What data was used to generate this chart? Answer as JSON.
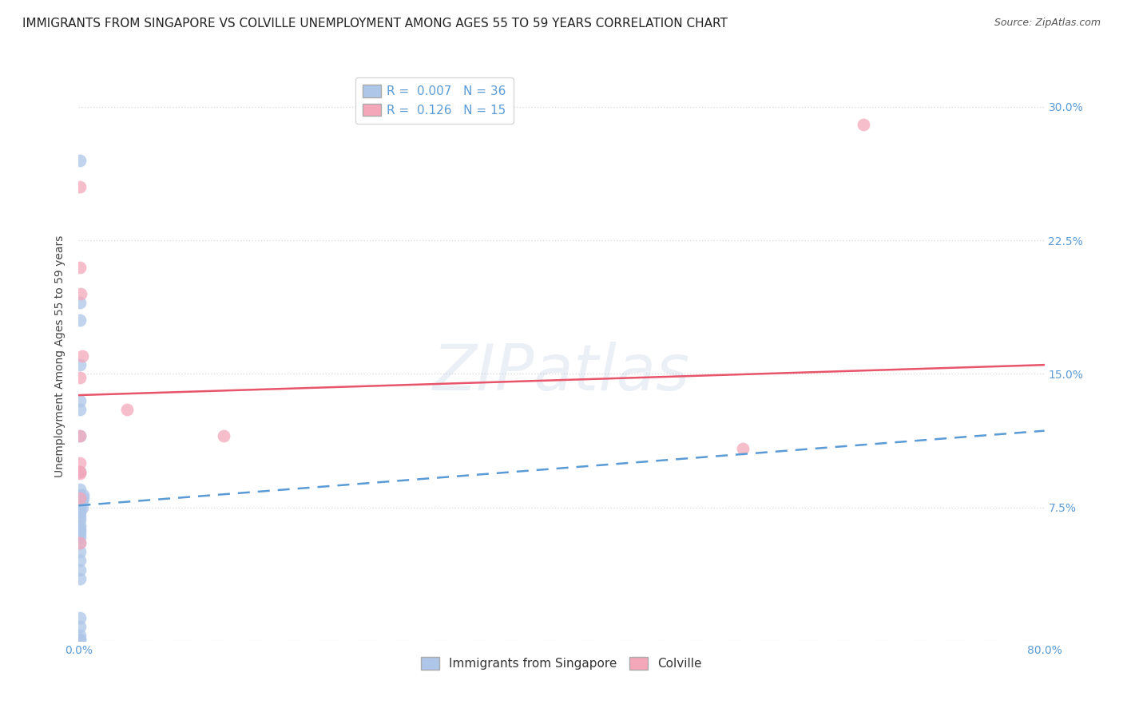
{
  "title": "IMMIGRANTS FROM SINGAPORE VS COLVILLE UNEMPLOYMENT AMONG AGES 55 TO 59 YEARS CORRELATION CHART",
  "source": "Source: ZipAtlas.com",
  "ylabel": "Unemployment Among Ages 55 to 59 years",
  "xlim": [
    0.0,
    0.8
  ],
  "ylim": [
    0.0,
    0.32
  ],
  "xticks": [
    0.0,
    0.1,
    0.2,
    0.3,
    0.4,
    0.5,
    0.6,
    0.7,
    0.8
  ],
  "xticklabels": [
    "0.0%",
    "",
    "",
    "",
    "",
    "",
    "",
    "",
    "80.0%"
  ],
  "yticks": [
    0.0,
    0.075,
    0.15,
    0.225,
    0.3
  ],
  "right_yticklabels": [
    "",
    "7.5%",
    "15.0%",
    "22.5%",
    "30.0%"
  ],
  "background_color": "#ffffff",
  "grid_color": "#dddddd",
  "legend_top_labels": [
    "R =  0.007   N = 36",
    "R =  0.126   N = 15"
  ],
  "legend_bot_labels": [
    "Immigrants from Singapore",
    "Colville"
  ],
  "blue_scatter_x": [
    0.001,
    0.001,
    0.001,
    0.001,
    0.001,
    0.001,
    0.001,
    0.001,
    0.001,
    0.001,
    0.001,
    0.001,
    0.001,
    0.001,
    0.001,
    0.001,
    0.001,
    0.001,
    0.001,
    0.001,
    0.001,
    0.001,
    0.001,
    0.001,
    0.001,
    0.001,
    0.001,
    0.001,
    0.001,
    0.001,
    0.003,
    0.003,
    0.004,
    0.004,
    0.001,
    0.001
  ],
  "blue_scatter_y": [
    0.27,
    0.19,
    0.18,
    0.155,
    0.135,
    0.13,
    0.115,
    0.095,
    0.085,
    0.082,
    0.078,
    0.076,
    0.075,
    0.073,
    0.072,
    0.07,
    0.068,
    0.065,
    0.063,
    0.062,
    0.06,
    0.058,
    0.055,
    0.05,
    0.045,
    0.04,
    0.035,
    0.013,
    0.008,
    0.003,
    0.078,
    0.075,
    0.082,
    0.08,
    0.001,
    0.001
  ],
  "pink_scatter_x": [
    0.001,
    0.001,
    0.002,
    0.003,
    0.001,
    0.001,
    0.04,
    0.12,
    0.55,
    0.65,
    0.001,
    0.001,
    0.001,
    0.001,
    0.001
  ],
  "pink_scatter_y": [
    0.255,
    0.21,
    0.195,
    0.16,
    0.148,
    0.115,
    0.13,
    0.115,
    0.108,
    0.29,
    0.094,
    0.055,
    0.095,
    0.1,
    0.08
  ],
  "blue_line_x": [
    0.0,
    0.8
  ],
  "blue_line_y": [
    0.076,
    0.118
  ],
  "pink_line_x": [
    0.0,
    0.8
  ],
  "pink_line_y": [
    0.138,
    0.155
  ],
  "blue_line_color": "#5b9bd5",
  "pink_line_color": "#e8546a",
  "blue_scatter_color": "#aec6e8",
  "pink_scatter_color": "#f4a7b9",
  "watermark": "ZIPatlas",
  "title_fontsize": 11,
  "axis_label_fontsize": 10,
  "tick_label_fontsize": 10,
  "legend_fontsize": 11,
  "tick_color": "#5b9bd5"
}
